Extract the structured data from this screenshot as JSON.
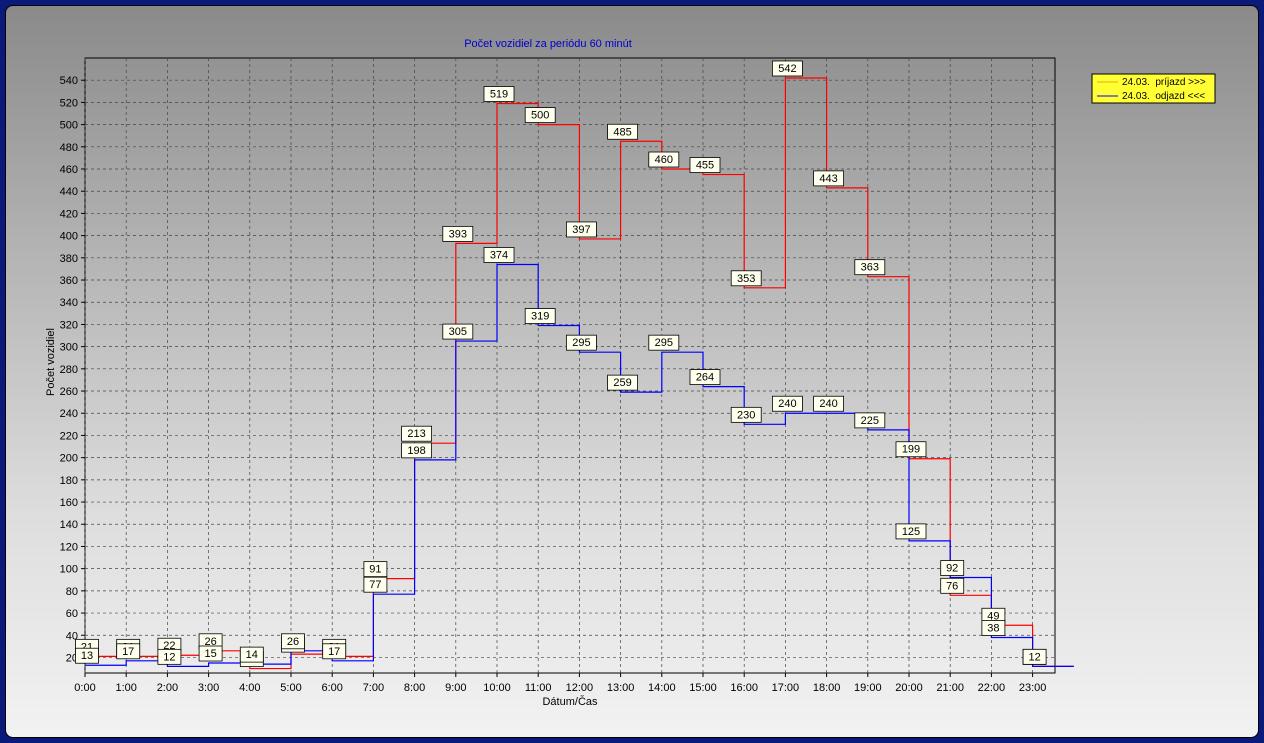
{
  "chart_data": {
    "type": "line",
    "step": true,
    "title": "Počet vozidiel za periódu 60 minút",
    "xlabel": "Dátum/Čas",
    "ylabel": "Počet vozidiel",
    "categories": [
      "0:00",
      "1:00",
      "2:00",
      "3:00",
      "4:00",
      "5:00",
      "6:00",
      "7:00",
      "8:00",
      "9:00",
      "10:00",
      "11:00",
      "12:00",
      "13:00",
      "14:00",
      "15:00",
      "16:00",
      "17:00",
      "18:00",
      "19:00",
      "20:00",
      "21:00",
      "22:00",
      "23:00"
    ],
    "yticks": [
      20,
      40,
      60,
      80,
      100,
      120,
      140,
      160,
      180,
      200,
      220,
      240,
      260,
      280,
      300,
      320,
      340,
      360,
      380,
      400,
      420,
      440,
      460,
      480,
      500,
      520,
      540
    ],
    "ylim": [
      6,
      560
    ],
    "grid": true,
    "legend_position": "top-right",
    "series": [
      {
        "name": "24.03.  príjazd >>>",
        "color": "#ff0000",
        "values": [
          21,
          21,
          22,
          26,
          10,
          23,
          21,
          91,
          213,
          393,
          519,
          500,
          397,
          485,
          460,
          455,
          353,
          542,
          443,
          363,
          199,
          76,
          49,
          12
        ]
      },
      {
        "name": "24.03.  odjazd <<<",
        "color": "#0000ff",
        "values": [
          13,
          17,
          12,
          15,
          14,
          26,
          17,
          77,
          198,
          305,
          374,
          319,
          295,
          259,
          295,
          264,
          230,
          240,
          240,
          225,
          125,
          92,
          38,
          12
        ]
      }
    ]
  }
}
